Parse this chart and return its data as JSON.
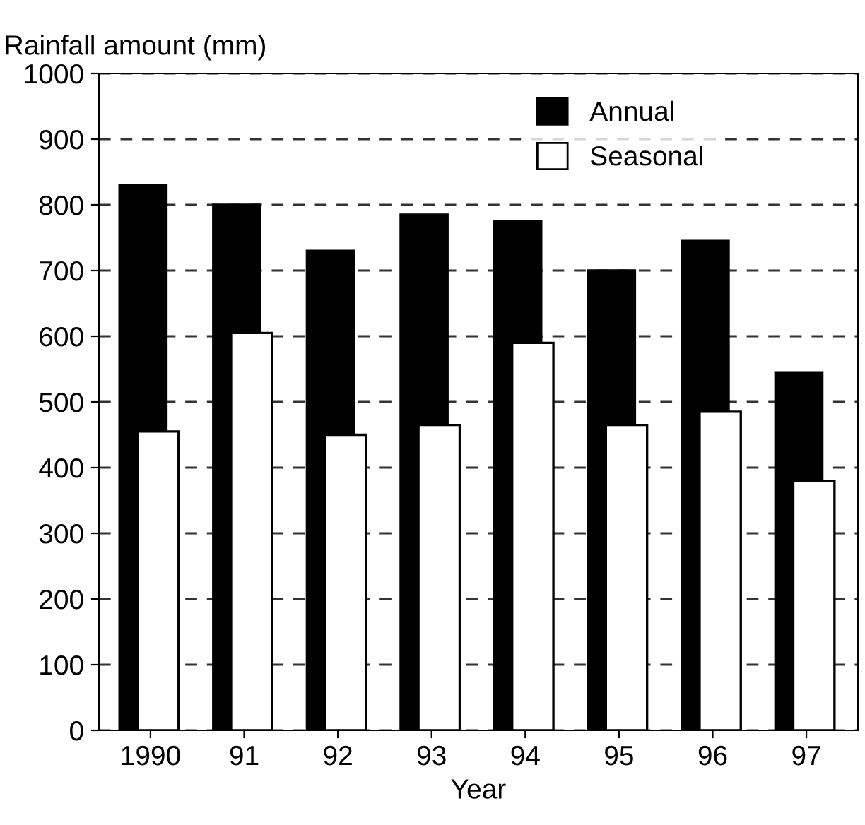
{
  "chart_data": {
    "type": "bar",
    "ylabel": "Rainfall amount (mm)",
    "xlabel": "Year",
    "categories": [
      "1990",
      "91",
      "92",
      "93",
      "94",
      "95",
      "96",
      "97"
    ],
    "series": [
      {
        "name": "Annual",
        "color": "#000000",
        "values": [
          830,
          800,
          730,
          785,
          775,
          700,
          745,
          545
        ]
      },
      {
        "name": "Seasonal",
        "color": "#ffffff",
        "values": [
          455,
          605,
          450,
          465,
          590,
          465,
          485,
          380
        ]
      }
    ],
    "ylim": [
      0,
      1000
    ],
    "yticks": [
      0,
      100,
      200,
      300,
      400,
      500,
      600,
      700,
      800,
      900,
      1000
    ],
    "grid": "y",
    "legend": "top right"
  }
}
